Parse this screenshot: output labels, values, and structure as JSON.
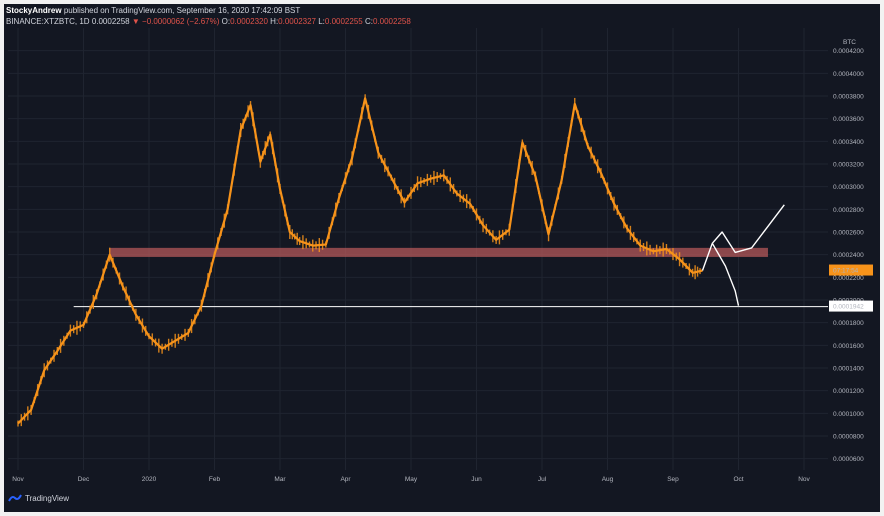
{
  "header": {
    "author": "StockyAndrew",
    "published": "published on TradingView.com, September 16, 2020 17:42:09 BST",
    "symbol": "BINANCE:XTZBTC, 1D",
    "last": "0.0002258",
    "change": "▼ −0.0000062 (−2.67%)",
    "o_label": "O:",
    "o_value": "0.0002320",
    "h_label": "H:",
    "h_value": "0.0002327",
    "l_label": "L:",
    "l_value": "0.0002255",
    "c_label": "C:",
    "c_value": "0.0002258"
  },
  "footer": {
    "brand": "TradingView"
  },
  "colors": {
    "background": "#131722",
    "candle": "#f7931a",
    "support_zone": "#b4585a",
    "support_line": "#ffffff",
    "price_tag": "#f7931a"
  },
  "chart_data": {
    "type": "line",
    "currency_label": "BTC",
    "x_tick_labels": [
      "Nov",
      "Dec",
      "2020",
      "Feb",
      "Mar",
      "Apr",
      "May",
      "Jun",
      "Jul",
      "Aug",
      "Sep",
      "Oct",
      "Nov"
    ],
    "y_tick_labels": [
      "0.0004200",
      "0.0004000",
      "0.0003800",
      "0.0003600",
      "0.0003400",
      "0.0003200",
      "0.0003000",
      "0.0002800",
      "0.0002600",
      "0.0002400",
      "0.0002200",
      "0.0002000",
      "0.0001800",
      "0.0001600",
      "0.0001400",
      "0.0001200",
      "0.0001000",
      "0.0000800",
      "0.0000600"
    ],
    "y_ticks": [
      0.00042,
      0.0004,
      0.00038,
      0.00036,
      0.00034,
      0.00032,
      0.0003,
      0.00028,
      0.00026,
      0.00024,
      0.00022,
      0.0002,
      0.00018,
      0.00016,
      0.00014,
      0.00012,
      0.0001,
      8e-05,
      6e-05
    ],
    "ylim": [
      5e-05,
      0.00044
    ],
    "x_months": [
      0,
      1,
      2,
      3,
      4,
      5,
      6,
      7,
      8,
      9,
      10,
      11,
      12
    ],
    "series": [
      {
        "x": [
          0,
          0.2,
          0.4,
          0.6,
          0.8,
          1.0,
          1.2,
          1.4,
          1.6,
          1.8,
          2.0,
          2.2,
          2.4,
          2.6,
          2.8,
          3.0,
          3.2,
          3.4,
          3.55,
          3.7,
          3.85,
          4.0,
          4.15,
          4.3,
          4.5,
          4.7,
          4.9,
          5.1,
          5.3,
          5.5,
          5.7,
          5.9,
          6.1,
          6.3,
          6.5,
          6.7,
          6.9,
          7.1,
          7.3,
          7.5,
          7.7,
          7.9,
          8.1,
          8.3,
          8.5,
          8.7,
          8.9,
          9.1,
          9.3,
          9.5,
          9.7,
          9.9,
          10.1,
          10.3,
          10.45
        ],
        "values": [
          9.1e-05,
          0.000103,
          0.000138,
          0.000155,
          0.000173,
          0.000178,
          0.000205,
          0.00024,
          0.000212,
          0.000187,
          0.000168,
          0.000157,
          0.000164,
          0.000171,
          0.000195,
          0.00024,
          0.00028,
          0.00035,
          0.000372,
          0.000322,
          0.000346,
          0.000298,
          0.00026,
          0.000252,
          0.000248,
          0.000249,
          0.00029,
          0.000325,
          0.000378,
          0.00033,
          0.000308,
          0.000286,
          0.000303,
          0.000307,
          0.00031,
          0.000294,
          0.000285,
          0.000266,
          0.000253,
          0.000262,
          0.000339,
          0.000309,
          0.000258,
          0.000306,
          0.000373,
          0.000336,
          0.000312,
          0.000285,
          0.000263,
          0.000248,
          0.000243,
          0.000245,
          0.000236,
          0.000224,
          0.000226
        ]
      }
    ],
    "support_zone": [
      0.000238,
      0.000246
    ],
    "support_line": 0.0001942,
    "support_line_label": "0.0001942",
    "current_price_tag": "07:17:54",
    "projection_up": {
      "x": [
        10.45,
        10.6,
        10.75,
        10.95,
        11.2,
        11.45,
        11.7
      ],
      "values": [
        0.000226,
        0.00025,
        0.00026,
        0.000242,
        0.000246,
        0.000265,
        0.000284
      ]
    },
    "projection_down": {
      "x": [
        10.6,
        10.8,
        10.95,
        11.0
      ],
      "values": [
        0.00025,
        0.00023,
        0.000208,
        0.000195
      ]
    }
  }
}
